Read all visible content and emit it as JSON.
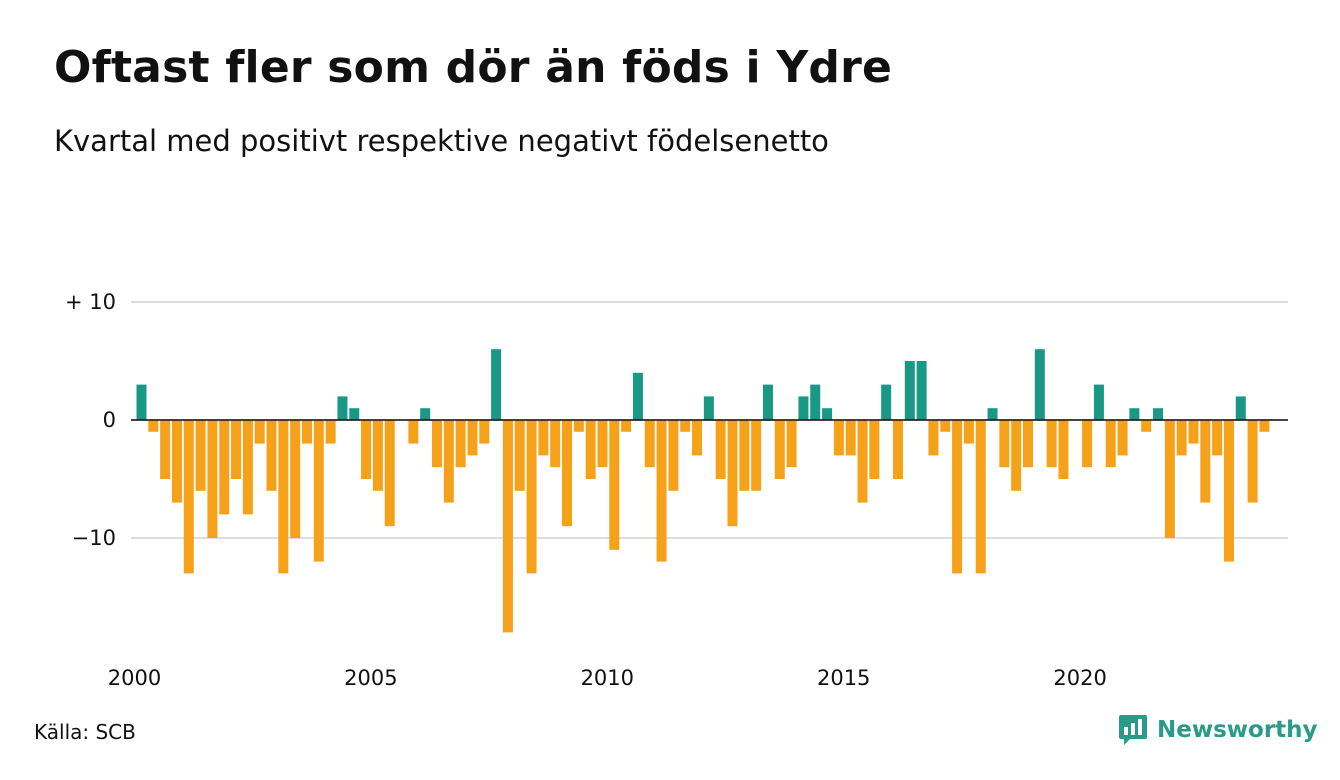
{
  "header": {
    "title": "Oftast fler som dör än föds i Ydre",
    "subtitle": "Kvartal med positivt respektive negativt födelsenetto"
  },
  "footer": {
    "source": "Källa: SCB",
    "brand": "Newsworthy",
    "brand_icon": "newsworthy-logo-icon"
  },
  "colors": {
    "positive": "#1a9886",
    "negative": "#f6a11a",
    "grid": "#dddddd",
    "brand": "#2a9b88"
  },
  "chart_data": {
    "type": "bar",
    "title": "Oftast fler som dör än föds i Ydre",
    "subtitle": "Kvartal med positivt respektive negativt födelsenetto",
    "x_start": "2000 Q1",
    "x_tick_labels": [
      "2000",
      "2005",
      "2010",
      "2015",
      "2020"
    ],
    "y_tick_values": [
      10,
      0,
      -10
    ],
    "y_tick_labels": [
      "+ 10",
      "0",
      "−10"
    ],
    "ylim": [
      -18,
      10
    ],
    "grid": true,
    "legend": "none",
    "values": [
      3,
      -1,
      -5,
      -7,
      -13,
      -6,
      -10,
      -8,
      -5,
      -8,
      -2,
      -6,
      -13,
      -10,
      -2,
      -12,
      -2,
      2,
      1,
      -5,
      -6,
      -9,
      0,
      -2,
      1,
      -4,
      -7,
      -4,
      -3,
      -2,
      6,
      -18,
      -6,
      -13,
      -3,
      -4,
      -9,
      -1,
      -5,
      -4,
      -11,
      -1,
      4,
      -4,
      -12,
      -6,
      -1,
      -3,
      2,
      -5,
      -9,
      -6,
      -6,
      3,
      -5,
      -4,
      2,
      3,
      1,
      -3,
      -3,
      -7,
      -5,
      3,
      -5,
      5,
      5,
      -3,
      -1,
      -13,
      -2,
      -13,
      1,
      -4,
      -6,
      -4,
      6,
      -4,
      -5,
      0,
      -4,
      3,
      -4,
      -3,
      1,
      -1,
      1,
      -10,
      -3,
      -2,
      -7,
      -3,
      -12,
      2,
      -7,
      -1
    ]
  }
}
